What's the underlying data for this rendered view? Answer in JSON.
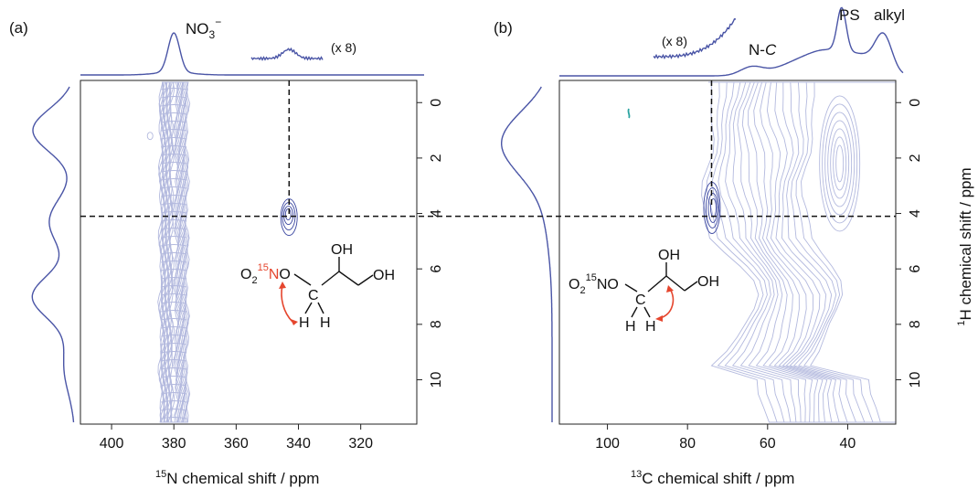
{
  "colors": {
    "projection": "#4a55a6",
    "contour_bulk": "#b3b9de",
    "contour_peak": "#3a46a0",
    "arrow": "#e5462e",
    "label_red": "#e5462e",
    "cross_peak_teal": "#2aa3a0"
  },
  "chart_data": [
    {
      "type": "contour",
      "panel_label": "(a)",
      "xlabel_sup": "15",
      "xlabel": "N chemical shift / ppm",
      "xlim": [
        410,
        302
      ],
      "xticks": [
        400,
        380,
        360,
        340,
        320
      ],
      "ylim": [
        -0.8,
        11.6
      ],
      "yticks": [
        0,
        2,
        4,
        6,
        8,
        10
      ],
      "projection_label": "NO",
      "projection_label_sub": "3",
      "projection_label_sup": "−",
      "scale_label": "(x 8)",
      "peaks": [
        {
          "name": "nitrate",
          "x": 380,
          "y_range": [
            -0.8,
            11.6
          ]
        },
        {
          "name": "nitrate-ester cross peak",
          "x": 343,
          "y": 4.1
        }
      ],
      "guide_lines": {
        "x": 343,
        "y": 4.1
      },
      "molecule": {
        "prefix": "O",
        "prefix_sub": "2",
        "iso_sup": "15",
        "iso_atom": "N",
        "link": "O",
        "carbon": "C",
        "h_left": "H",
        "h_right": "H",
        "oh_top": "OH",
        "oh_right": "OH"
      }
    },
    {
      "type": "contour",
      "panel_label": "(b)",
      "xlabel_sup": "13",
      "xlabel": "C chemical shift / ppm",
      "ylabel_sup": "1",
      "ylabel": "H chemical shift / ppm",
      "xlim": [
        112,
        28
      ],
      "xticks": [
        100,
        80,
        60,
        40
      ],
      "ylim": [
        -0.8,
        11.6
      ],
      "yticks": [
        0,
        2,
        4,
        6,
        8,
        10
      ],
      "projection_labels": {
        "nc": "N-",
        "nc_italic": "C",
        "ps": "PS",
        "alkyl": "alkyl"
      },
      "scale_label": "(x 8)",
      "peaks": [
        {
          "name": "N-C cross peak",
          "x": 74,
          "y": 3.8
        },
        {
          "name": "PS",
          "x": 42,
          "y": 1.0
        },
        {
          "name": "alkyl",
          "x": 30,
          "y": 1.0
        }
      ],
      "guide_lines": {
        "x": 74,
        "y": 4.1
      },
      "molecule": {
        "prefix": "O",
        "prefix_sub": "2",
        "iso_sup": "15",
        "iso_atom": "NO",
        "carbon": "C",
        "h_left": "H",
        "h_right": "H",
        "oh_top": "OH",
        "oh_right": "OH"
      }
    }
  ]
}
